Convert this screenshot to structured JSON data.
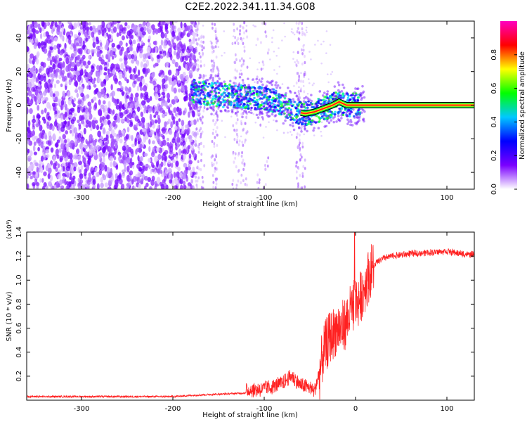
{
  "title": "C2E2.2022.341.11.34.G08",
  "chart_data": [
    {
      "type": "heatmap",
      "xlabel": "Height of straight line (km)",
      "ylabel": "Frequency (Hz)",
      "xlim": [
        -360,
        130
      ],
      "ylim": [
        -50,
        50
      ],
      "xticks": [
        -300,
        -200,
        -100,
        0,
        100
      ],
      "yticks": [
        -40,
        -20,
        0,
        20,
        40
      ],
      "colorbar": {
        "label": "Normalized spectral amplitude",
        "range": [
          0,
          1
        ],
        "ticks": [
          0.0,
          0.2,
          0.4,
          0.6,
          0.8
        ],
        "colormap": [
          "#ffffff",
          "#7a00ff",
          "#0000ff",
          "#00c8ff",
          "#00ff00",
          "#ffff00",
          "#ff0000",
          "#ff00c0"
        ]
      },
      "ridge": {
        "x": [
          -175,
          -150,
          -125,
          -100,
          -80,
          -65,
          -55,
          -45,
          -35,
          -25,
          -18,
          -10,
          0,
          50,
          130
        ],
        "y": [
          8,
          6,
          5,
          4,
          1,
          -4,
          -5,
          -4,
          -2,
          0,
          2,
          0,
          0,
          0,
          0
        ]
      }
    },
    {
      "type": "line",
      "xlabel": "Height of straight line (km)",
      "ylabel": "SNR (10 * v/v)",
      "y_multiplier": "(x10⁴)",
      "xlim": [
        -360,
        130
      ],
      "ylim": [
        0,
        1.4
      ],
      "xticks": [
        -300,
        -200,
        -100,
        0,
        100
      ],
      "yticks": [
        0.2,
        0.4,
        0.6,
        0.8,
        1.0,
        1.2,
        1.4
      ],
      "line_color": "#ff2020",
      "series": [
        {
          "x": [
            -360,
            -300,
            -250,
            -200,
            -180,
            -150,
            -120,
            -100,
            -90,
            -80,
            -70,
            -60,
            -50,
            -45,
            -40,
            -35,
            -30,
            -25,
            -20,
            -15,
            -10,
            -5,
            0,
            5,
            10,
            15,
            20,
            25,
            30,
            40,
            60,
            80,
            100,
            115,
            130
          ],
          "y": [
            0.03,
            0.03,
            0.03,
            0.03,
            0.04,
            0.05,
            0.06,
            0.07,
            0.09,
            0.12,
            0.18,
            0.1,
            0.08,
            0.05,
            0.2,
            0.4,
            0.5,
            0.55,
            0.6,
            0.6,
            0.65,
            0.75,
            0.8,
            0.85,
            0.95,
            1.05,
            1.12,
            1.16,
            1.18,
            1.2,
            1.22,
            1.23,
            1.24,
            1.22,
            1.21
          ]
        }
      ]
    }
  ]
}
